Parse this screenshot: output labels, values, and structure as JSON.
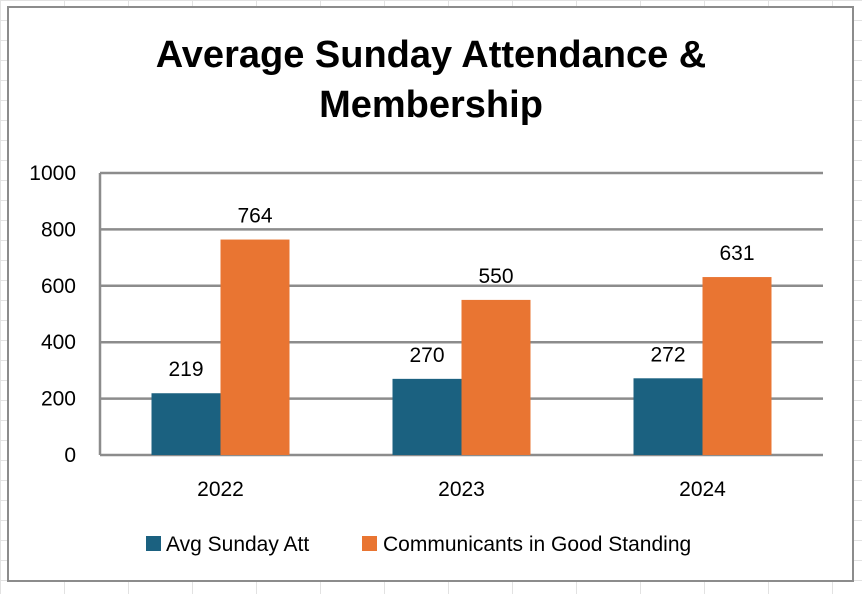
{
  "chart_data": {
    "type": "bar",
    "title_lines": [
      "Average Sunday Attendance &",
      "Membership"
    ],
    "categories": [
      "2022",
      "2023",
      "2024"
    ],
    "series": [
      {
        "name": "Avg Sunday Att",
        "values": [
          219,
          270,
          272
        ],
        "color": "#1b6180"
      },
      {
        "name": "Communicants in Good Standing",
        "values": [
          764,
          550,
          631
        ],
        "color": "#e97532"
      }
    ],
    "ylim": [
      0,
      1000
    ],
    "yticks": [
      "0",
      "200",
      "400",
      "600",
      "800",
      "1000"
    ],
    "ytick_values": [
      0,
      200,
      400,
      600,
      800,
      1000
    ],
    "grid": true,
    "legend_position": "bottom",
    "data_labels": true
  }
}
